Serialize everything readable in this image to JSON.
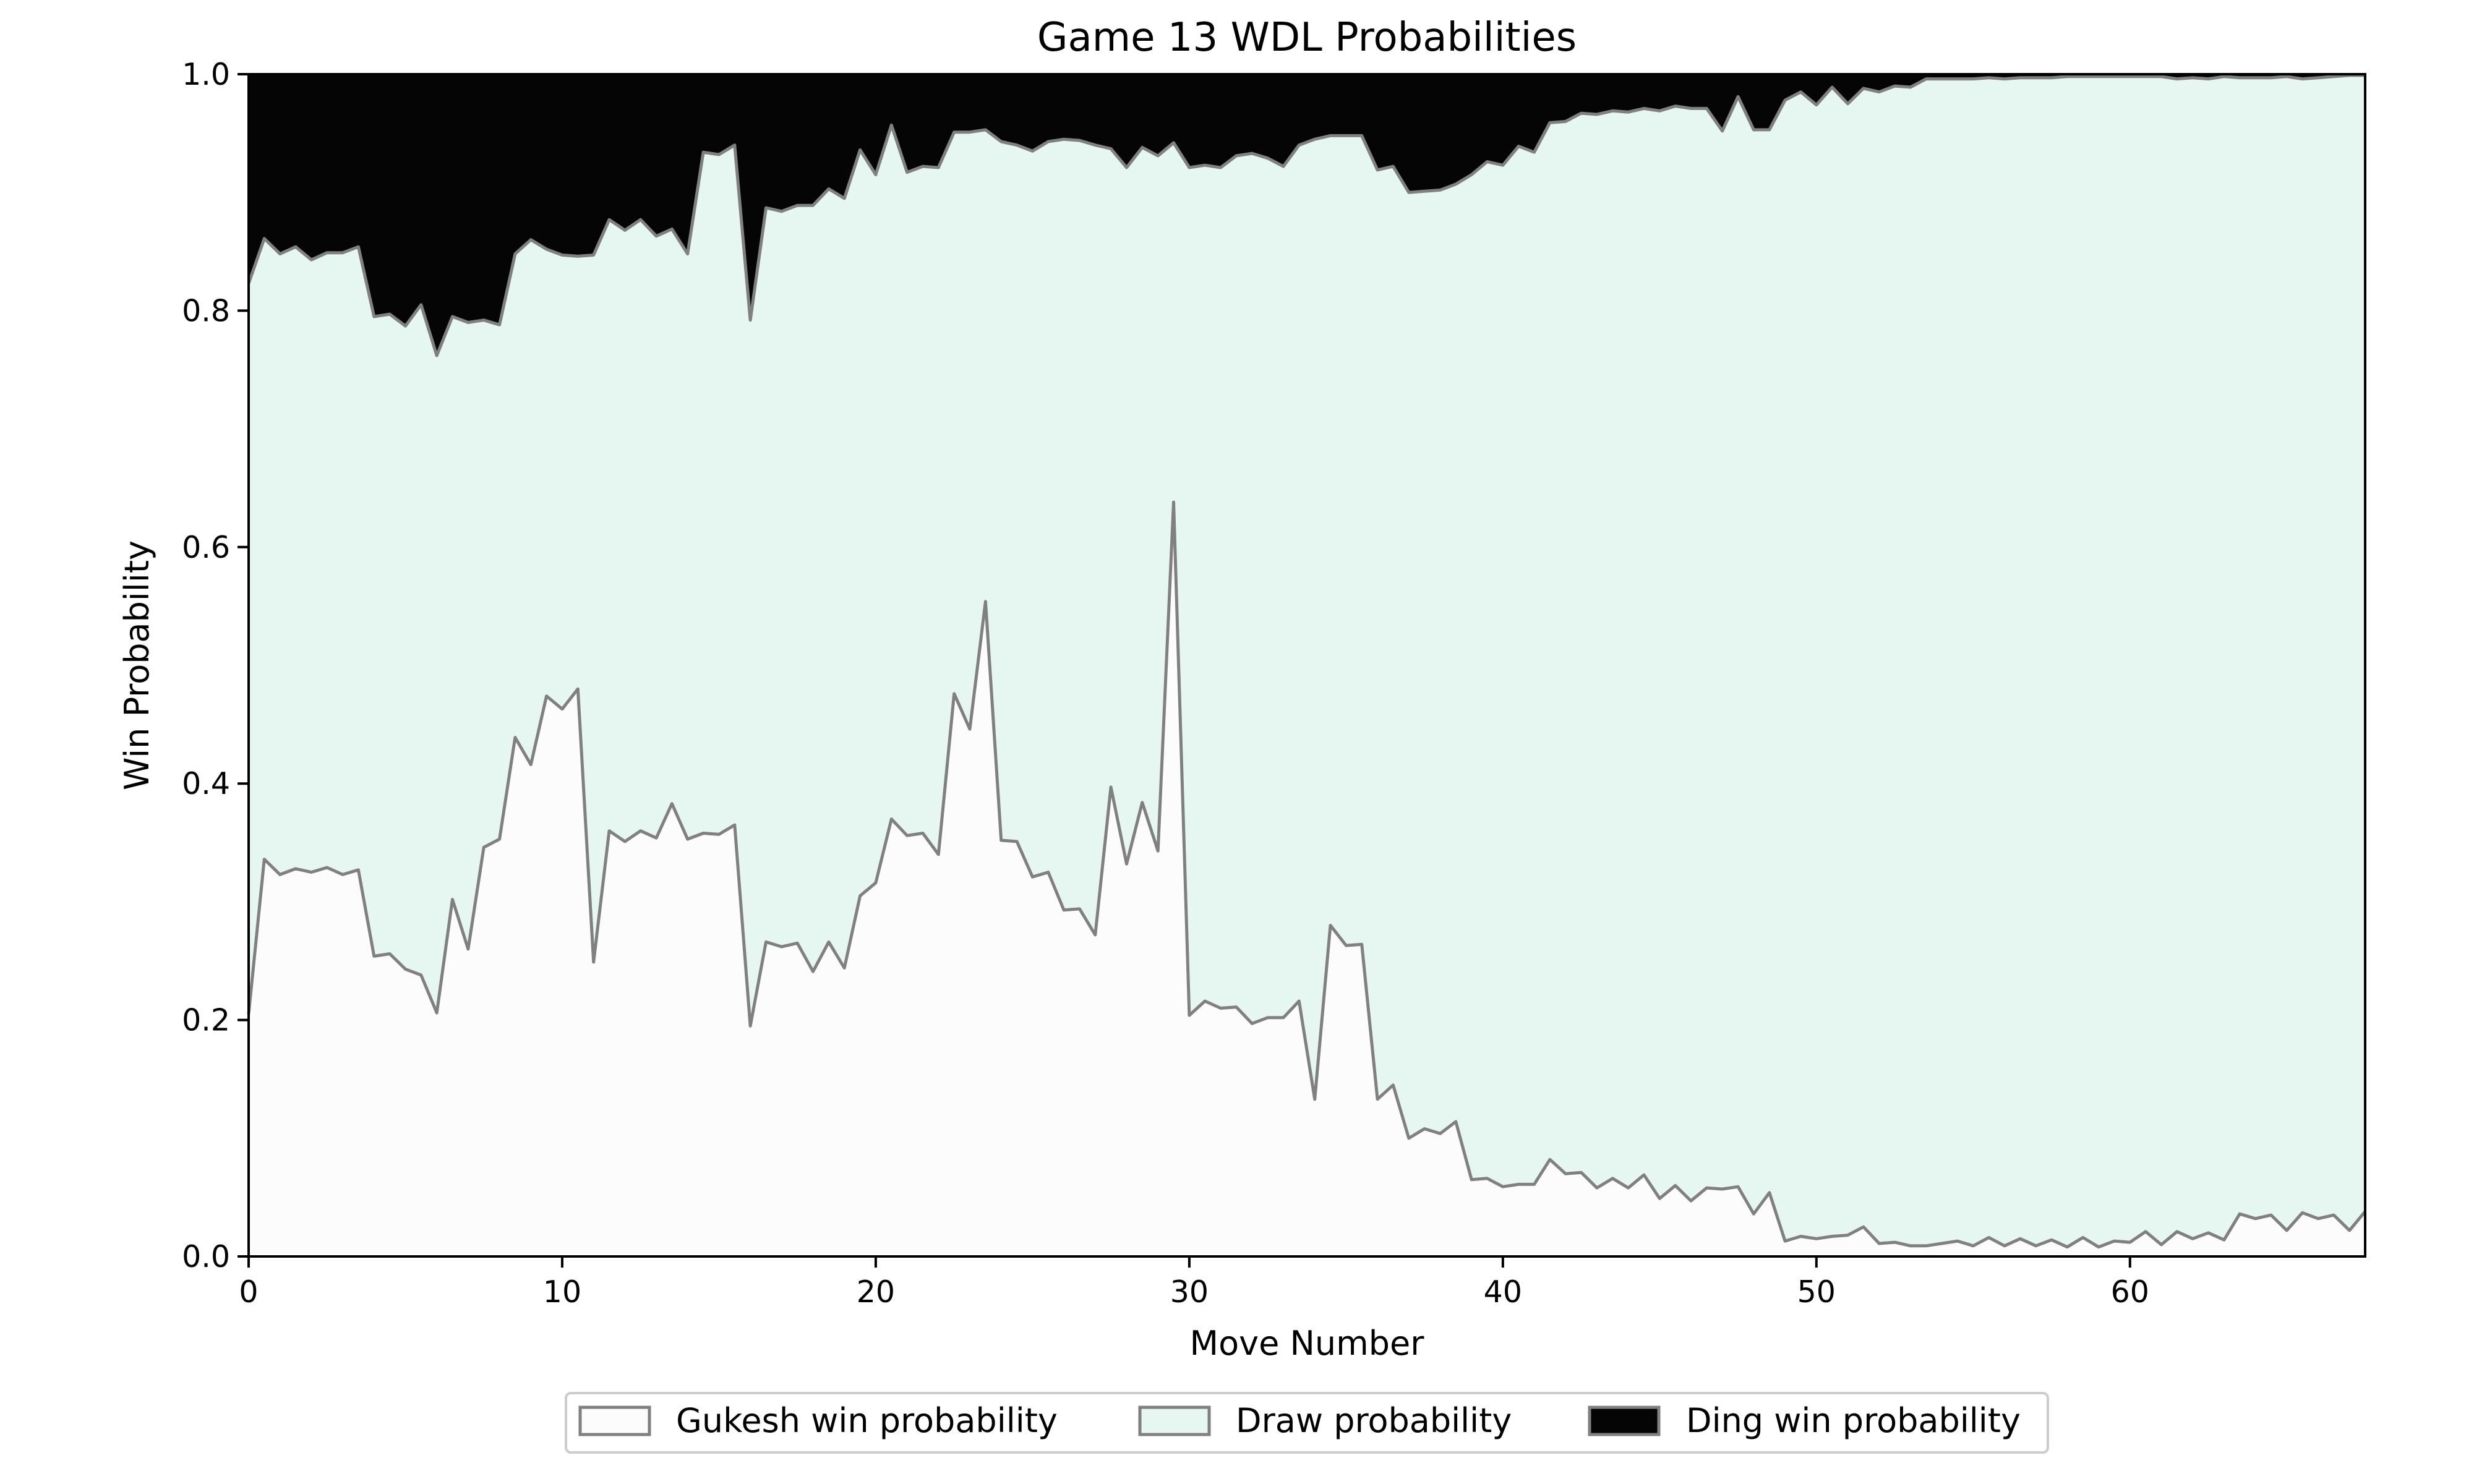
{
  "chart_data": {
    "type": "area",
    "stacked": true,
    "title": "Game 13 WDL Probabilities",
    "xlabel": "Move Number",
    "ylabel": "Win Probability",
    "xlim": [
      0,
      67.5
    ],
    "ylim": [
      0,
      1.0
    ],
    "xticks": [
      0,
      10,
      20,
      30,
      40,
      50,
      60
    ],
    "yticks": [
      0.0,
      0.2,
      0.4,
      0.6,
      0.8,
      1.0
    ],
    "xtick_labels": [
      "0",
      "10",
      "20",
      "30",
      "40",
      "50",
      "60"
    ],
    "ytick_labels": [
      "0.0",
      "0.2",
      "0.4",
      "0.6",
      "0.8",
      "1.0"
    ],
    "grid": false,
    "legend_position": "bottom-center",
    "colors": {
      "gukesh": "#fcfcfc",
      "draw": "#e6f6f0",
      "ding": "#050505",
      "line": "#808080"
    },
    "x_step": 0.5,
    "series": [
      {
        "name": "Gukesh win probability",
        "values": [
          0.205,
          0.336,
          0.323,
          0.328,
          0.325,
          0.329,
          0.323,
          0.327,
          0.254,
          0.256,
          0.243,
          0.238,
          0.206,
          0.302,
          0.26,
          0.346,
          0.353,
          0.439,
          0.416,
          0.474,
          0.463,
          0.48,
          0.249,
          0.36,
          0.351,
          0.36,
          0.354,
          0.383,
          0.353,
          0.358,
          0.357,
          0.365,
          0.195,
          0.266,
          0.262,
          0.265,
          0.241,
          0.266,
          0.244,
          0.305,
          0.316,
          0.37,
          0.356,
          0.358,
          0.34,
          0.476,
          0.446,
          0.554,
          0.352,
          0.351,
          0.321,
          0.325,
          0.293,
          0.294,
          0.272,
          0.397,
          0.332,
          0.384,
          0.343,
          0.638,
          0.204,
          0.216,
          0.21,
          0.211,
          0.197,
          0.202,
          0.202,
          0.216,
          0.133,
          0.28,
          0.263,
          0.264,
          0.133,
          0.145,
          0.1,
          0.108,
          0.104,
          0.114,
          0.065,
          0.066,
          0.059,
          0.061,
          0.061,
          0.082,
          0.07,
          0.071,
          0.058,
          0.066,
          0.058,
          0.069,
          0.049,
          0.06,
          0.047,
          0.058,
          0.057,
          0.059,
          0.036,
          0.054,
          0.013,
          0.017,
          0.015,
          0.017,
          0.018,
          0.025,
          0.011,
          0.012,
          0.009,
          0.009,
          0.011,
          0.013,
          0.009,
          0.016,
          0.009,
          0.015,
          0.009,
          0.014,
          0.008,
          0.016,
          0.008,
          0.013,
          0.012,
          0.021,
          0.01,
          0.021,
          0.015,
          0.02,
          0.014,
          0.036,
          0.032,
          0.035,
          0.022,
          0.037,
          0.032,
          0.035,
          0.022,
          0.038
        ]
      },
      {
        "name": "Draw probability",
        "values": [
          0.618,
          0.525,
          0.525,
          0.526,
          0.518,
          0.52,
          0.526,
          0.527,
          0.541,
          0.541,
          0.544,
          0.567,
          0.556,
          0.493,
          0.53,
          0.446,
          0.435,
          0.409,
          0.444,
          0.378,
          0.384,
          0.366,
          0.598,
          0.517,
          0.517,
          0.517,
          0.509,
          0.486,
          0.495,
          0.576,
          0.575,
          0.575,
          0.597,
          0.621,
          0.622,
          0.624,
          0.648,
          0.637,
          0.651,
          0.631,
          0.599,
          0.587,
          0.561,
          0.564,
          0.581,
          0.475,
          0.505,
          0.399,
          0.591,
          0.589,
          0.614,
          0.618,
          0.652,
          0.65,
          0.668,
          0.54,
          0.589,
          0.554,
          0.588,
          0.304,
          0.717,
          0.707,
          0.711,
          0.72,
          0.736,
          0.727,
          0.72,
          0.724,
          0.812,
          0.668,
          0.685,
          0.684,
          0.786,
          0.777,
          0.8,
          0.793,
          0.798,
          0.793,
          0.85,
          0.86,
          0.864,
          0.878,
          0.873,
          0.877,
          0.89,
          0.896,
          0.908,
          0.903,
          0.91,
          0.902,
          0.92,
          0.913,
          0.924,
          0.913,
          0.895,
          0.922,
          0.917,
          0.899,
          0.965,
          0.968,
          0.959,
          0.972,
          0.957,
          0.963,
          0.974,
          0.978,
          0.98,
          0.987,
          0.985,
          0.983,
          0.987,
          0.981,
          0.987,
          0.982,
          0.988,
          0.983,
          0.99,
          0.982,
          0.99,
          0.985,
          0.986,
          0.977,
          0.988,
          0.975,
          0.982,
          0.976,
          0.984,
          0.961,
          0.965,
          0.962,
          0.976,
          0.959,
          0.965,
          0.963,
          0.977,
          0.961
        ]
      },
      {
        "name": "Ding win probability",
        "values": [
          0.177,
          0.139,
          0.152,
          0.146,
          0.157,
          0.151,
          0.151,
          0.146,
          0.205,
          0.203,
          0.213,
          0.195,
          0.238,
          0.205,
          0.21,
          0.208,
          0.212,
          0.152,
          0.14,
          0.148,
          0.153,
          0.154,
          0.153,
          0.123,
          0.132,
          0.123,
          0.137,
          0.131,
          0.152,
          0.066,
          0.068,
          0.06,
          0.208,
          0.113,
          0.116,
          0.111,
          0.111,
          0.097,
          0.105,
          0.064,
          0.085,
          0.043,
          0.083,
          0.078,
          0.079,
          0.049,
          0.049,
          0.047,
          0.057,
          0.06,
          0.065,
          0.057,
          0.055,
          0.056,
          0.06,
          0.063,
          0.079,
          0.062,
          0.069,
          0.058,
          0.079,
          0.077,
          0.079,
          0.069,
          0.067,
          0.071,
          0.078,
          0.06,
          0.055,
          0.052,
          0.052,
          0.052,
          0.081,
          0.078,
          0.1,
          0.099,
          0.098,
          0.093,
          0.085,
          0.074,
          0.077,
          0.061,
          0.066,
          0.041,
          0.04,
          0.033,
          0.034,
          0.031,
          0.032,
          0.029,
          0.031,
          0.027,
          0.029,
          0.029,
          0.048,
          0.019,
          0.047,
          0.047,
          0.022,
          0.015,
          0.026,
          0.011,
          0.025,
          0.012,
          0.015,
          0.01,
          0.011,
          0.004,
          0.004,
          0.004,
          0.004,
          0.003,
          0.004,
          0.003,
          0.003,
          0.003,
          0.002,
          0.002,
          0.002,
          0.002,
          0.002,
          0.002,
          0.002,
          0.004,
          0.003,
          0.004,
          0.002,
          0.003,
          0.003,
          0.003,
          0.002,
          0.004,
          0.003,
          0.002,
          0.001,
          0.001
        ]
      }
    ]
  }
}
